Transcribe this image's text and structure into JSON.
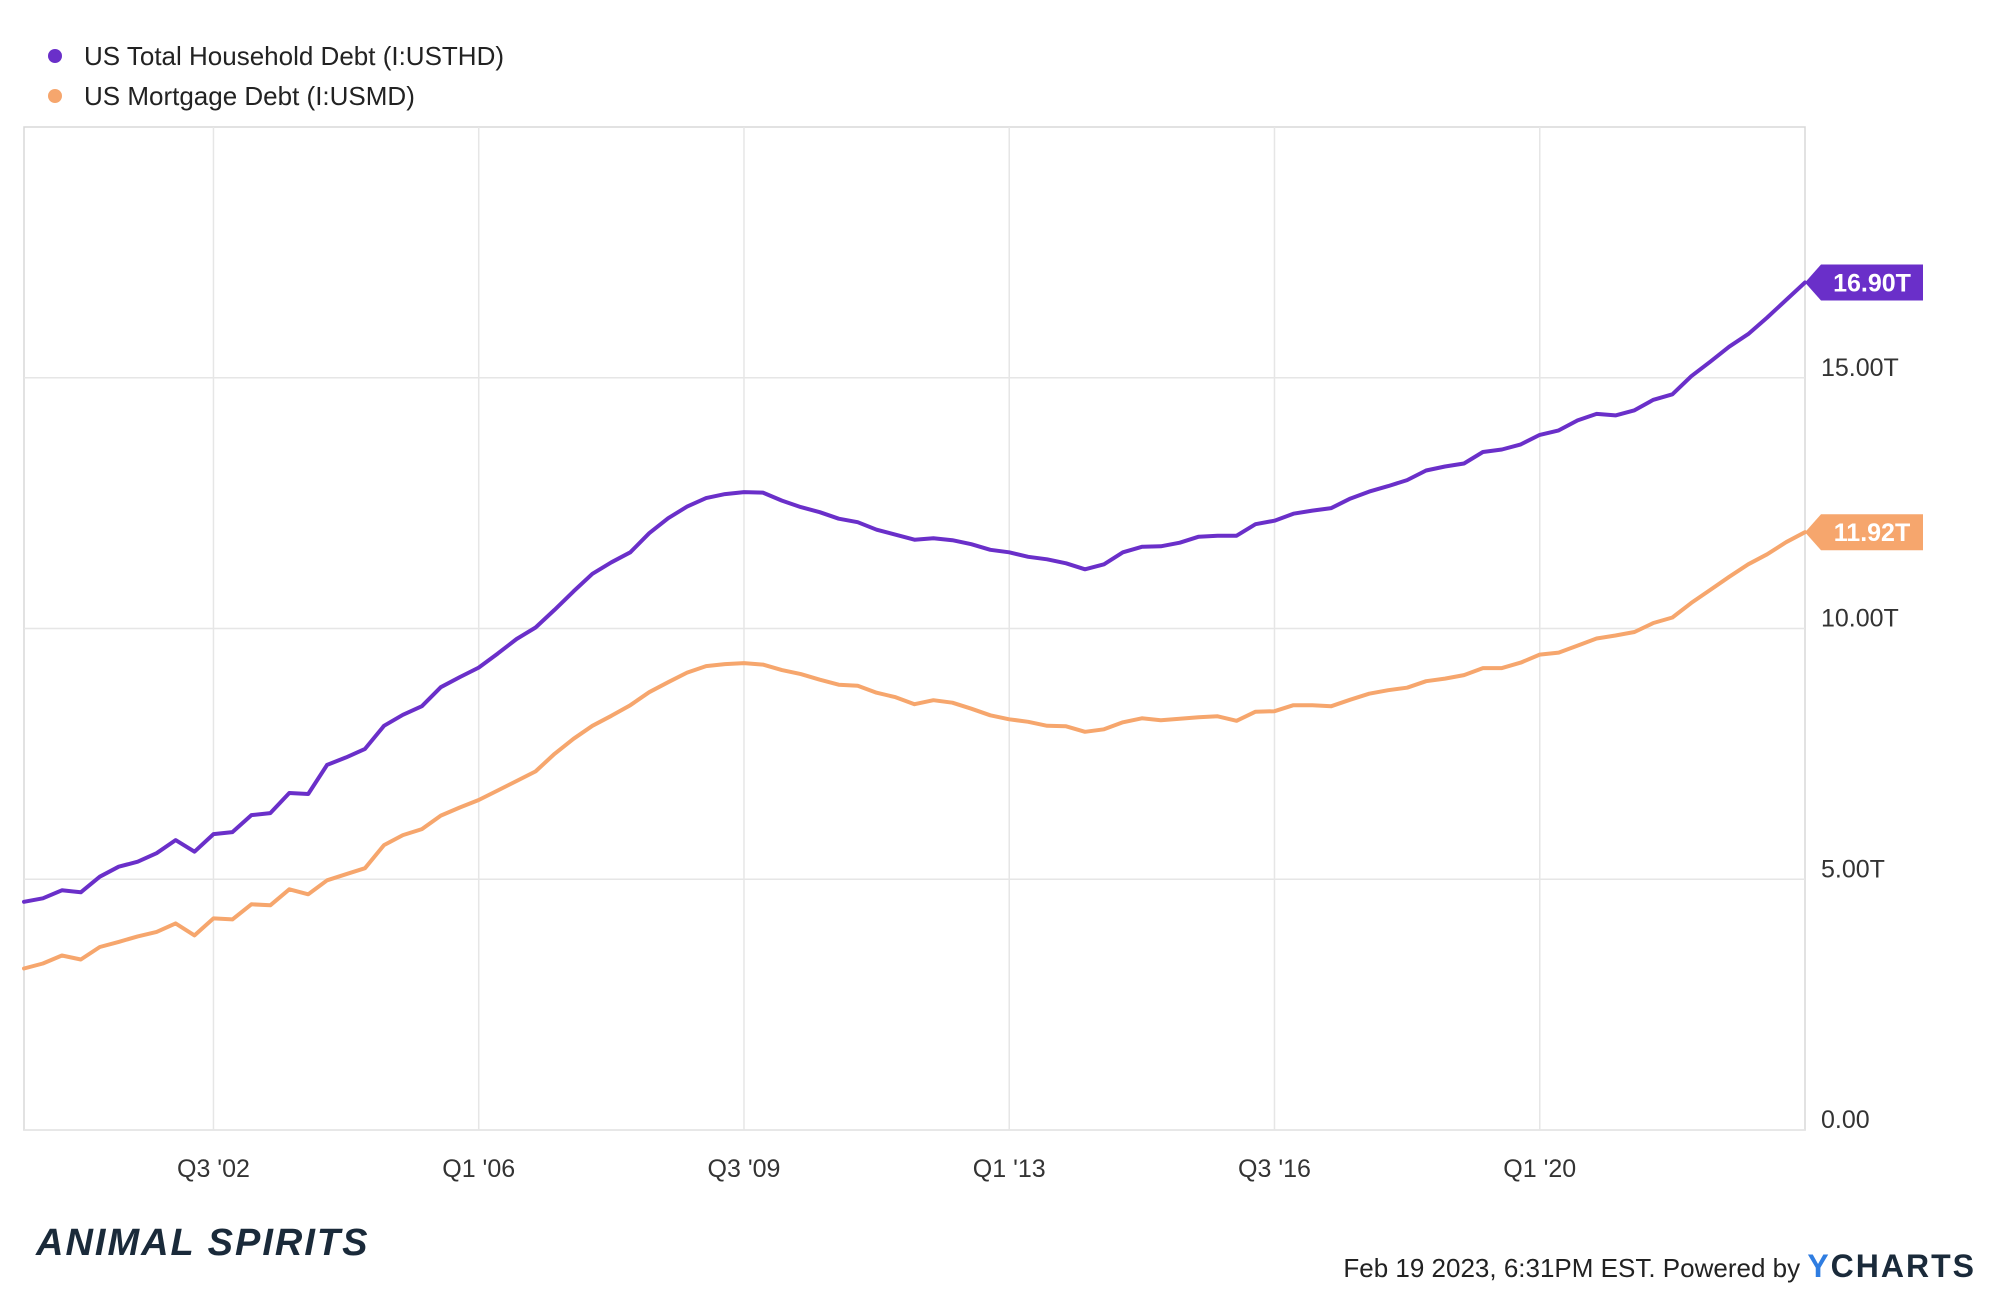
{
  "chart_data": {
    "type": "line",
    "series": [
      {
        "name": "US Total Household Debt (I:USTHD)",
        "color": "#6a2fc9",
        "last_value_label": "16.90T",
        "points": [
          [
            2000.0,
            4.55
          ],
          [
            2000.25,
            4.62
          ],
          [
            2000.5,
            4.78
          ],
          [
            2000.75,
            4.74
          ],
          [
            2001.0,
            5.05
          ],
          [
            2001.25,
            5.25
          ],
          [
            2001.5,
            5.35
          ],
          [
            2001.75,
            5.52
          ],
          [
            2002.0,
            5.78
          ],
          [
            2002.25,
            5.55
          ],
          [
            2002.5,
            5.9
          ],
          [
            2002.75,
            5.94
          ],
          [
            2003.0,
            6.28
          ],
          [
            2003.25,
            6.32
          ],
          [
            2003.5,
            6.72
          ],
          [
            2003.75,
            6.7
          ],
          [
            2004.0,
            7.28
          ],
          [
            2004.25,
            7.43
          ],
          [
            2004.5,
            7.6
          ],
          [
            2004.75,
            8.06
          ],
          [
            2005.0,
            8.28
          ],
          [
            2005.25,
            8.45
          ],
          [
            2005.5,
            8.83
          ],
          [
            2005.75,
            9.03
          ],
          [
            2006.0,
            9.22
          ],
          [
            2006.25,
            9.5
          ],
          [
            2006.5,
            9.79
          ],
          [
            2006.75,
            10.02
          ],
          [
            2007.0,
            10.37
          ],
          [
            2007.25,
            10.74
          ],
          [
            2007.5,
            11.09
          ],
          [
            2007.75,
            11.32
          ],
          [
            2008.0,
            11.52
          ],
          [
            2008.25,
            11.9
          ],
          [
            2008.5,
            12.2
          ],
          [
            2008.75,
            12.43
          ],
          [
            2009.0,
            12.6
          ],
          [
            2009.25,
            12.68
          ],
          [
            2009.5,
            12.72
          ],
          [
            2009.75,
            12.71
          ],
          [
            2010.0,
            12.55
          ],
          [
            2010.25,
            12.42
          ],
          [
            2010.5,
            12.32
          ],
          [
            2010.75,
            12.19
          ],
          [
            2011.0,
            12.12
          ],
          [
            2011.25,
            11.97
          ],
          [
            2011.5,
            11.87
          ],
          [
            2011.75,
            11.77
          ],
          [
            2012.0,
            11.8
          ],
          [
            2012.25,
            11.76
          ],
          [
            2012.5,
            11.68
          ],
          [
            2012.75,
            11.57
          ],
          [
            2013.0,
            11.52
          ],
          [
            2013.25,
            11.43
          ],
          [
            2013.5,
            11.38
          ],
          [
            2013.75,
            11.3
          ],
          [
            2014.0,
            11.18
          ],
          [
            2014.25,
            11.28
          ],
          [
            2014.5,
            11.52
          ],
          [
            2014.75,
            11.63
          ],
          [
            2015.0,
            11.64
          ],
          [
            2015.25,
            11.71
          ],
          [
            2015.5,
            11.83
          ],
          [
            2015.75,
            11.85
          ],
          [
            2016.0,
            11.85
          ],
          [
            2016.25,
            12.08
          ],
          [
            2016.5,
            12.15
          ],
          [
            2016.75,
            12.29
          ],
          [
            2017.0,
            12.35
          ],
          [
            2017.25,
            12.4
          ],
          [
            2017.5,
            12.59
          ],
          [
            2017.75,
            12.73
          ],
          [
            2018.0,
            12.84
          ],
          [
            2018.25,
            12.96
          ],
          [
            2018.5,
            13.15
          ],
          [
            2018.75,
            13.23
          ],
          [
            2019.0,
            13.29
          ],
          [
            2019.25,
            13.52
          ],
          [
            2019.5,
            13.57
          ],
          [
            2019.75,
            13.67
          ],
          [
            2020.0,
            13.86
          ],
          [
            2020.25,
            13.95
          ],
          [
            2020.5,
            14.15
          ],
          [
            2020.75,
            14.28
          ],
          [
            2021.0,
            14.25
          ],
          [
            2021.25,
            14.35
          ],
          [
            2021.5,
            14.56
          ],
          [
            2021.75,
            14.67
          ],
          [
            2022.0,
            15.03
          ],
          [
            2022.25,
            15.32
          ],
          [
            2022.5,
            15.62
          ],
          [
            2022.75,
            15.87
          ],
          [
            2023.0,
            16.2
          ],
          [
            2023.25,
            16.55
          ],
          [
            2023.5,
            16.9
          ]
        ]
      },
      {
        "name": "US Mortgage Debt (I:USMD)",
        "color": "#f6a66d",
        "last_value_label": "11.92T",
        "points": [
          [
            2000.0,
            3.22
          ],
          [
            2000.25,
            3.32
          ],
          [
            2000.5,
            3.48
          ],
          [
            2000.75,
            3.4
          ],
          [
            2001.0,
            3.65
          ],
          [
            2001.25,
            3.75
          ],
          [
            2001.5,
            3.86
          ],
          [
            2001.75,
            3.95
          ],
          [
            2002.0,
            4.12
          ],
          [
            2002.25,
            3.88
          ],
          [
            2002.5,
            4.22
          ],
          [
            2002.75,
            4.2
          ],
          [
            2003.0,
            4.5
          ],
          [
            2003.25,
            4.48
          ],
          [
            2003.5,
            4.8
          ],
          [
            2003.75,
            4.7
          ],
          [
            2004.0,
            4.98
          ],
          [
            2004.25,
            5.1
          ],
          [
            2004.5,
            5.22
          ],
          [
            2004.75,
            5.68
          ],
          [
            2005.0,
            5.88
          ],
          [
            2005.25,
            6.0
          ],
          [
            2005.5,
            6.27
          ],
          [
            2005.75,
            6.43
          ],
          [
            2006.0,
            6.58
          ],
          [
            2006.25,
            6.77
          ],
          [
            2006.5,
            6.96
          ],
          [
            2006.75,
            7.15
          ],
          [
            2007.0,
            7.5
          ],
          [
            2007.25,
            7.8
          ],
          [
            2007.5,
            8.06
          ],
          [
            2007.75,
            8.26
          ],
          [
            2008.0,
            8.47
          ],
          [
            2008.25,
            8.73
          ],
          [
            2008.5,
            8.93
          ],
          [
            2008.75,
            9.12
          ],
          [
            2009.0,
            9.25
          ],
          [
            2009.25,
            9.29
          ],
          [
            2009.5,
            9.31
          ],
          [
            2009.75,
            9.28
          ],
          [
            2010.0,
            9.17
          ],
          [
            2010.25,
            9.09
          ],
          [
            2010.5,
            8.98
          ],
          [
            2010.75,
            8.88
          ],
          [
            2011.0,
            8.86
          ],
          [
            2011.25,
            8.72
          ],
          [
            2011.5,
            8.63
          ],
          [
            2011.75,
            8.49
          ],
          [
            2012.0,
            8.57
          ],
          [
            2012.25,
            8.52
          ],
          [
            2012.5,
            8.4
          ],
          [
            2012.75,
            8.27
          ],
          [
            2013.0,
            8.19
          ],
          [
            2013.25,
            8.14
          ],
          [
            2013.5,
            8.06
          ],
          [
            2013.75,
            8.05
          ],
          [
            2014.0,
            7.94
          ],
          [
            2014.25,
            7.99
          ],
          [
            2014.5,
            8.13
          ],
          [
            2014.75,
            8.21
          ],
          [
            2015.0,
            8.17
          ],
          [
            2015.25,
            8.2
          ],
          [
            2015.5,
            8.23
          ],
          [
            2015.75,
            8.25
          ],
          [
            2016.0,
            8.16
          ],
          [
            2016.25,
            8.34
          ],
          [
            2016.5,
            8.35
          ],
          [
            2016.75,
            8.47
          ],
          [
            2017.0,
            8.47
          ],
          [
            2017.25,
            8.45
          ],
          [
            2017.5,
            8.58
          ],
          [
            2017.75,
            8.7
          ],
          [
            2018.0,
            8.77
          ],
          [
            2018.25,
            8.82
          ],
          [
            2018.5,
            8.95
          ],
          [
            2018.75,
            9.0
          ],
          [
            2019.0,
            9.07
          ],
          [
            2019.25,
            9.21
          ],
          [
            2019.5,
            9.21
          ],
          [
            2019.75,
            9.32
          ],
          [
            2020.0,
            9.48
          ],
          [
            2020.25,
            9.52
          ],
          [
            2020.5,
            9.66
          ],
          [
            2020.75,
            9.8
          ],
          [
            2021.0,
            9.86
          ],
          [
            2021.25,
            9.93
          ],
          [
            2021.5,
            10.11
          ],
          [
            2021.75,
            10.22
          ],
          [
            2022.0,
            10.51
          ],
          [
            2022.25,
            10.77
          ],
          [
            2022.5,
            11.03
          ],
          [
            2022.75,
            11.28
          ],
          [
            2023.0,
            11.48
          ],
          [
            2023.25,
            11.72
          ],
          [
            2023.5,
            11.92
          ]
        ]
      }
    ],
    "x_ticks": [
      {
        "value": 2002.5,
        "label": "Q3 '02"
      },
      {
        "value": 2006.0,
        "label": "Q1 '06"
      },
      {
        "value": 2009.5,
        "label": "Q3 '09"
      },
      {
        "value": 2013.0,
        "label": "Q1 '13"
      },
      {
        "value": 2016.5,
        "label": "Q3 '16"
      },
      {
        "value": 2020.0,
        "label": "Q1 '20"
      }
    ],
    "y_ticks": [
      {
        "value": 0,
        "label": "0.00"
      },
      {
        "value": 5,
        "label": "5.00T"
      },
      {
        "value": 10,
        "label": "10.00T"
      },
      {
        "value": 15,
        "label": "15.00T"
      }
    ],
    "xlim": [
      2000.0,
      2023.5
    ],
    "ylim": [
      0,
      20
    ],
    "grid": true,
    "legend_position": "top-left"
  },
  "footer": {
    "brand": "ANIMAL SPIRITS",
    "credit": "Feb 19 2023, 6:31PM EST. Powered by",
    "logo_y": "Y",
    "logo_rest": "CHARTS"
  }
}
